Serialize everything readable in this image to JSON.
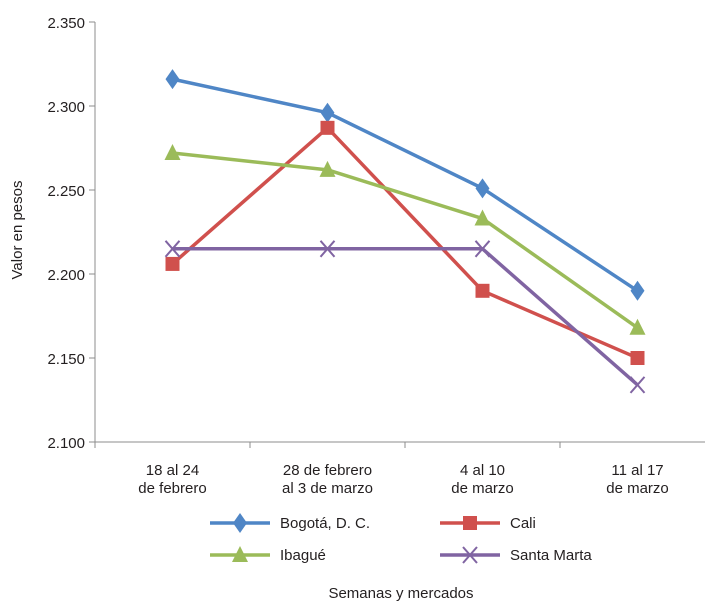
{
  "chart_data": {
    "type": "line",
    "title": "",
    "xlabel": "Semanas y mercados",
    "ylabel": "Valor en pesos",
    "ylim": [
      2100,
      2350
    ],
    "yticks": [
      2100,
      2150,
      2200,
      2250,
      2300,
      2350
    ],
    "ytick_labels": [
      "2.100",
      "2.150",
      "2.200",
      "2.250",
      "2.300",
      "2.350"
    ],
    "categories": [
      [
        "18 al 24",
        "de febrero"
      ],
      [
        "28 de febrero",
        "al 3 de marzo"
      ],
      [
        "4 al 10",
        "de marzo"
      ],
      [
        "11 al 17",
        "de marzo"
      ]
    ],
    "grid": false,
    "legend_position": "bottom",
    "series": [
      {
        "name": "Bogotá, D. C.",
        "color": "#4f86c6",
        "marker": "diamond",
        "values": [
          2316,
          2296,
          2251,
          2190
        ]
      },
      {
        "name": "Cali",
        "color": "#d0504d",
        "marker": "square",
        "values": [
          2206,
          2287,
          2190,
          2150
        ]
      },
      {
        "name": "Ibagué",
        "color": "#9bbb59",
        "marker": "triangle",
        "values": [
          2272,
          2262,
          2233,
          2168
        ]
      },
      {
        "name": "Santa Marta",
        "color": "#8064a2",
        "marker": "x",
        "values": [
          2215,
          2215,
          2215,
          2134
        ]
      }
    ]
  }
}
